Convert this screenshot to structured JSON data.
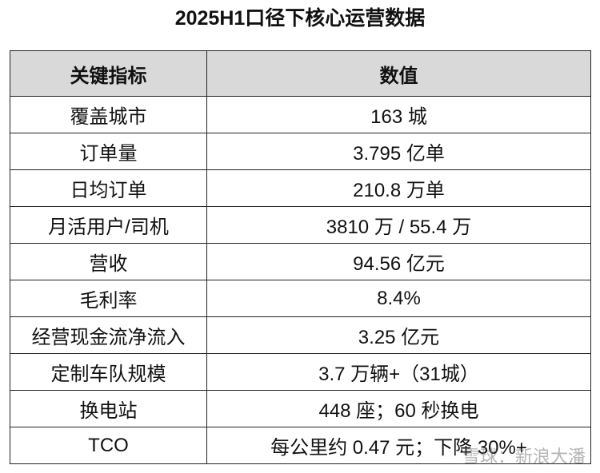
{
  "title": "2025H1口径下核心运营数据",
  "table": {
    "header": [
      "关键指标",
      "数值"
    ],
    "rows": [
      [
        "覆盖城市",
        "163 城"
      ],
      [
        "订单量",
        "3.795 亿单"
      ],
      [
        "日均订单",
        "210.8 万单"
      ],
      [
        "月活用户/司机",
        "3810 万 / 55.4 万"
      ],
      [
        "营收",
        "94.56 亿元"
      ],
      [
        "毛利率",
        "8.4%"
      ],
      [
        "经营现金流净流入",
        "3.25 亿元"
      ],
      [
        "定制车队规模",
        "3.7 万辆+（31城）"
      ],
      [
        "换电站",
        "448 座；60 秒换电"
      ],
      [
        "TCO",
        "每公里约 0.47 元；下降 30%+"
      ]
    ]
  },
  "watermark": "雪球：新浪大潘"
}
